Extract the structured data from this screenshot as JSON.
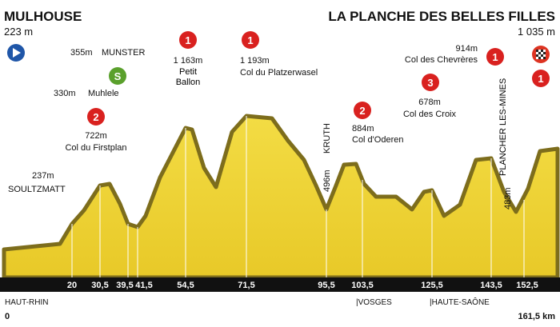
{
  "header": {
    "start": {
      "name": "MULHOUSE",
      "altitude": "223 m"
    },
    "finish": {
      "name": "LA PLANCHE DES BELLES FILLES",
      "altitude": "1 035 m"
    }
  },
  "climbs": [
    {
      "altitude": "237m",
      "name": "SOULTZMATT"
    },
    {
      "category": "2",
      "altitude": "722m",
      "name": "Col du Firstplan"
    },
    {
      "category": "S",
      "altitude": "330m",
      "name": "Muhlele"
    },
    {
      "altitude": "355m",
      "name": "MUNSTER"
    },
    {
      "category": "1",
      "altitude": "1 163m",
      "name": "Petit Ballon"
    },
    {
      "category": "1",
      "altitude": "1 193m",
      "name": "Col du Platzerwasel"
    },
    {
      "altitude": "496m",
      "name": "KRUTH"
    },
    {
      "category": "2",
      "altitude": "884m",
      "name": "Col d'Oderen"
    },
    {
      "category": "3",
      "altitude": "678m",
      "name": "Col des Croix"
    },
    {
      "category": "1",
      "altitude": "914m",
      "name": "Col des Chevrères"
    },
    {
      "altitude": "483m",
      "name": "PLANCHER LES-MINES"
    },
    {
      "category": "1"
    }
  ],
  "km_markers": [
    "20",
    "30,5",
    "39,5",
    "41,5",
    "54,5",
    "71,5",
    "95,5",
    "103,5",
    "125,5",
    "143,5",
    "152,5"
  ],
  "regions": [
    "HAUT-RHIN",
    "|VOSGES",
    "|HAUTE-SAÔNE"
  ],
  "distance": {
    "start": "0",
    "end": "161,5 km"
  }
}
